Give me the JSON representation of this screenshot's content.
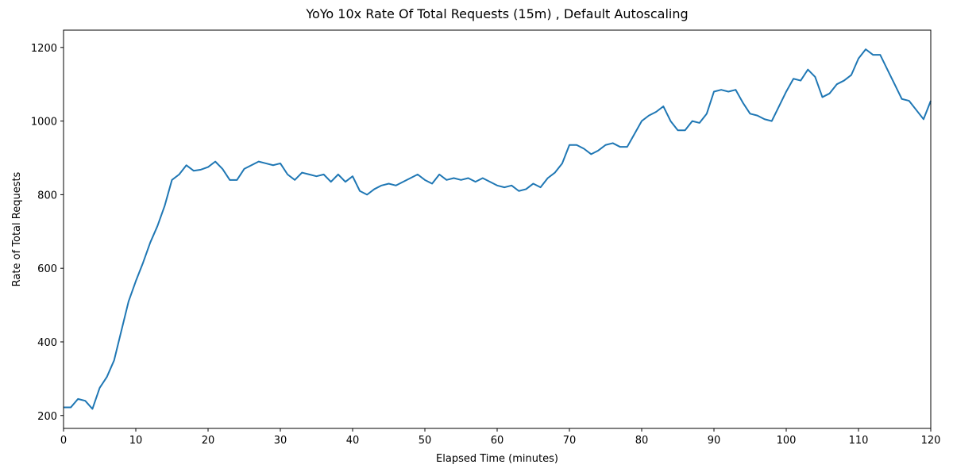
{
  "chart_data": {
    "type": "line",
    "title": "YoYo 10x Rate Of Total Requests (15m) , Default Autoscaling",
    "x_label": "Elapsed Time (minutes)",
    "y_label": "Rate of Total Requests",
    "x": [
      0,
      1,
      2,
      3,
      4,
      5,
      6,
      7,
      8,
      9,
      10,
      11,
      12,
      13,
      14,
      15,
      16,
      17,
      18,
      19,
      20,
      21,
      22,
      23,
      24,
      25,
      26,
      27,
      28,
      29,
      30,
      31,
      32,
      33,
      34,
      35,
      36,
      37,
      38,
      39,
      40,
      41,
      42,
      43,
      44,
      45,
      46,
      47,
      48,
      49,
      50,
      51,
      52,
      53,
      54,
      55,
      56,
      57,
      58,
      59,
      60,
      61,
      62,
      63,
      64,
      65,
      66,
      67,
      68,
      69,
      70,
      71,
      72,
      73,
      74,
      75,
      76,
      77,
      78,
      79,
      80,
      81,
      82,
      83,
      84,
      85,
      86,
      87,
      88,
      89,
      90,
      91,
      92,
      93,
      94,
      95,
      96,
      97,
      98,
      99,
      100,
      101,
      102,
      103,
      104,
      105,
      106,
      107,
      108,
      109,
      110,
      111,
      112,
      113,
      114,
      115,
      116,
      117,
      118,
      119,
      120
    ],
    "series": [
      {
        "color": "#1f77b4",
        "values": [
          222,
          222,
          245,
          240,
          218,
          275,
          305,
          350,
          430,
          510,
          565,
          615,
          670,
          715,
          770,
          840,
          855,
          880,
          865,
          868,
          875,
          890,
          870,
          840,
          840,
          870,
          880,
          890,
          885,
          880,
          885,
          855,
          840,
          860,
          855,
          850,
          855,
          835,
          855,
          835,
          850,
          810,
          800,
          815,
          825,
          830,
          825,
          835,
          845,
          855,
          840,
          830,
          855,
          840,
          845,
          840,
          845,
          835,
          845,
          835,
          825,
          820,
          825,
          810,
          815,
          830,
          820,
          845,
          860,
          885,
          935,
          935,
          925,
          910,
          920,
          935,
          940,
          930,
          930,
          965,
          1000,
          1015,
          1025,
          1040,
          1000,
          975,
          975,
          1000,
          995,
          1020,
          1080,
          1085,
          1080,
          1085,
          1050,
          1020,
          1015,
          1005,
          1000,
          1040,
          1080,
          1115,
          1110,
          1140,
          1120,
          1065,
          1075,
          1100,
          1110,
          1125,
          1170,
          1195,
          1180,
          1180,
          1140,
          1100,
          1060,
          1055,
          1030,
          1005,
          1055
        ]
      }
    ],
    "xlim": [
      0,
      120
    ],
    "xticks": [
      0,
      10,
      20,
      30,
      40,
      50,
      60,
      70,
      80,
      90,
      100,
      110,
      120
    ],
    "ylim": [
      165,
      1247
    ],
    "yticks": [
      200,
      400,
      600,
      800,
      1000,
      1200
    ],
    "grid": false
  }
}
